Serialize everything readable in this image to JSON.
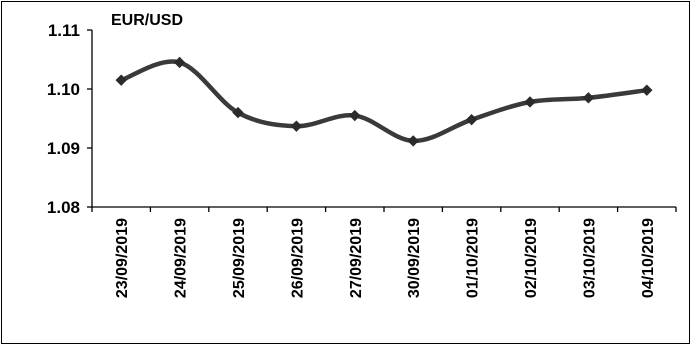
{
  "chart_data": {
    "type": "line",
    "title": "",
    "series_label": "EUR/USD",
    "xlabel": "",
    "ylabel": "",
    "categories": [
      "23/09/2019",
      "24/09/2019",
      "25/09/2019",
      "26/09/2019",
      "27/09/2019",
      "30/09/2019",
      "01/10/2019",
      "02/10/2019",
      "03/10/2019",
      "04/10/2019"
    ],
    "series": [
      {
        "name": "EUR/USD",
        "values": [
          1.1015,
          1.1045,
          1.096,
          1.0937,
          1.0955,
          1.0912,
          1.0948,
          1.0978,
          1.0985,
          1.0998
        ]
      }
    ],
    "ylim": [
      1.08,
      1.11
    ],
    "yticks": [
      "1.08",
      "1.09",
      "1.10",
      "1.11"
    ],
    "grid": false,
    "legend": "none",
    "colors": {
      "line": "#3a3a3a",
      "marker": "#2b2b2b",
      "axis": "#000000"
    },
    "marker": "diamond"
  }
}
